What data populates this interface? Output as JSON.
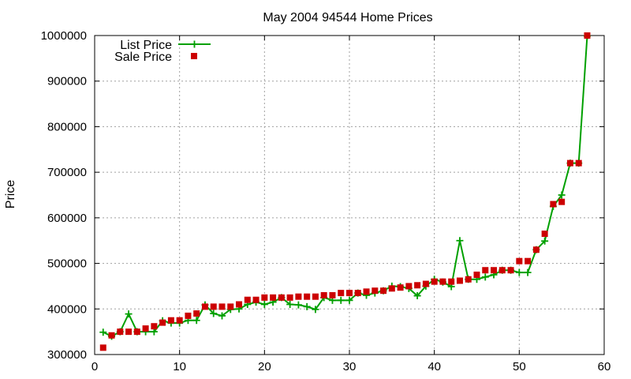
{
  "chart_data": {
    "type": "line",
    "title": "May 2004 94544 Home Prices",
    "xlabel": "",
    "ylabel": "Price",
    "xlim": [
      0,
      60
    ],
    "ylim": [
      300000,
      1000000
    ],
    "xticks": [
      0,
      10,
      20,
      30,
      40,
      50,
      60
    ],
    "yticks": [
      300000,
      400000,
      500000,
      600000,
      700000,
      800000,
      900000,
      1000000
    ],
    "grid": true,
    "legend_position": "top-left",
    "series": [
      {
        "name": "List Price",
        "style": "line-with-plus-markers",
        "color": "#00a000",
        "points": [
          [
            1,
            349000
          ],
          [
            2,
            340000
          ],
          [
            3,
            350000
          ],
          [
            4,
            389000
          ],
          [
            5,
            350000
          ],
          [
            6,
            350000
          ],
          [
            7,
            350000
          ],
          [
            8,
            374000
          ],
          [
            9,
            369000
          ],
          [
            10,
            369000
          ],
          [
            11,
            375000
          ],
          [
            12,
            375000
          ],
          [
            13,
            409000
          ],
          [
            14,
            390000
          ],
          [
            15,
            385000
          ],
          [
            16,
            399000
          ],
          [
            17,
            400000
          ],
          [
            18,
            410000
          ],
          [
            19,
            415000
          ],
          [
            20,
            410000
          ],
          [
            21,
            415000
          ],
          [
            22,
            425000
          ],
          [
            23,
            410000
          ],
          [
            24,
            409000
          ],
          [
            25,
            405000
          ],
          [
            26,
            399000
          ],
          [
            27,
            425000
          ],
          [
            28,
            419000
          ],
          [
            29,
            419000
          ],
          [
            30,
            419000
          ],
          [
            31,
            435000
          ],
          [
            32,
            430000
          ],
          [
            33,
            435000
          ],
          [
            34,
            440000
          ],
          [
            35,
            450000
          ],
          [
            36,
            449000
          ],
          [
            37,
            445000
          ],
          [
            38,
            429000
          ],
          [
            39,
            450000
          ],
          [
            40,
            465000
          ],
          [
            41,
            459000
          ],
          [
            42,
            449000
          ],
          [
            43,
            550000
          ],
          [
            44,
            465000
          ],
          [
            45,
            465000
          ],
          [
            46,
            470000
          ],
          [
            47,
            475000
          ],
          [
            48,
            485000
          ],
          [
            49,
            485000
          ],
          [
            50,
            480000
          ],
          [
            51,
            480000
          ],
          [
            52,
            530000
          ],
          [
            53,
            549000
          ],
          [
            54,
            625000
          ],
          [
            55,
            650000
          ],
          [
            56,
            720000
          ],
          [
            57,
            720000
          ],
          [
            58,
            999000
          ]
        ]
      },
      {
        "name": "Sale Price",
        "style": "square-markers",
        "color": "#cc0000",
        "points": [
          [
            1,
            315000
          ],
          [
            2,
            342000
          ],
          [
            3,
            350000
          ],
          [
            4,
            350000
          ],
          [
            5,
            350000
          ],
          [
            6,
            357000
          ],
          [
            7,
            362000
          ],
          [
            8,
            370000
          ],
          [
            9,
            375000
          ],
          [
            10,
            375000
          ],
          [
            11,
            385000
          ],
          [
            12,
            390000
          ],
          [
            13,
            405000
          ],
          [
            14,
            405000
          ],
          [
            15,
            405000
          ],
          [
            16,
            405000
          ],
          [
            17,
            410000
          ],
          [
            18,
            420000
          ],
          [
            19,
            420000
          ],
          [
            20,
            425000
          ],
          [
            21,
            425000
          ],
          [
            22,
            425000
          ],
          [
            23,
            425000
          ],
          [
            24,
            427000
          ],
          [
            25,
            427000
          ],
          [
            26,
            427000
          ],
          [
            27,
            430000
          ],
          [
            28,
            430000
          ],
          [
            29,
            435000
          ],
          [
            30,
            435000
          ],
          [
            31,
            435000
          ],
          [
            32,
            438000
          ],
          [
            33,
            440000
          ],
          [
            34,
            440000
          ],
          [
            35,
            445000
          ],
          [
            36,
            447000
          ],
          [
            37,
            450000
          ],
          [
            38,
            452000
          ],
          [
            39,
            455000
          ],
          [
            40,
            460000
          ],
          [
            41,
            460000
          ],
          [
            42,
            460000
          ],
          [
            43,
            462000
          ],
          [
            44,
            465000
          ],
          [
            45,
            475000
          ],
          [
            46,
            485000
          ],
          [
            47,
            485000
          ],
          [
            48,
            485000
          ],
          [
            49,
            485000
          ],
          [
            50,
            505000
          ],
          [
            51,
            505000
          ],
          [
            52,
            530000
          ],
          [
            53,
            565000
          ],
          [
            54,
            630000
          ],
          [
            55,
            635000
          ],
          [
            56,
            720000
          ],
          [
            57,
            720000
          ],
          [
            58,
            1000000
          ]
        ]
      }
    ]
  }
}
